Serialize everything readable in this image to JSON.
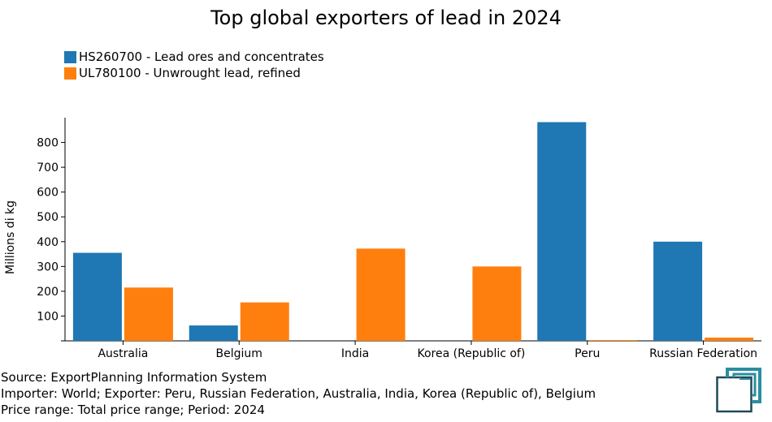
{
  "title": "Top global exporters of lead in 2024",
  "colors": {
    "series1": "#1f77b4",
    "series2": "#ff7f0e",
    "logo": "#2b8ea0",
    "logo_dark": "#1d4a57"
  },
  "chart_data": {
    "type": "bar",
    "title": "Top global exporters of lead in 2024",
    "xlabel": "",
    "ylabel": "Millions di kg",
    "ylim": [
      0,
      900
    ],
    "yticks": [
      100,
      200,
      300,
      400,
      500,
      600,
      700,
      800
    ],
    "grid": false,
    "legend_position": "top-left",
    "categories": [
      "Australia",
      "Belgium",
      "India",
      "Korea (Republic of)",
      "Peru",
      "Russian Federation"
    ],
    "series": [
      {
        "name": "HS260700 - Lead ores and concentrates",
        "color": "#1f77b4",
        "values": [
          355,
          62,
          0,
          0,
          882,
          400
        ]
      },
      {
        "name": "UL780100 - Unwrought lead, refined",
        "color": "#ff7f0e",
        "values": [
          215,
          155,
          372,
          300,
          3,
          13
        ]
      }
    ]
  },
  "footer": {
    "source": "Source: ExportPlanning Information System",
    "importer": "Importer: World; Exporter: Peru, Russian Federation, Australia, India, Korea (Republic of), Belgium",
    "price": "Price range: Total price range; Period: 2024"
  },
  "logo_icon": "exportplanning-logo-icon"
}
